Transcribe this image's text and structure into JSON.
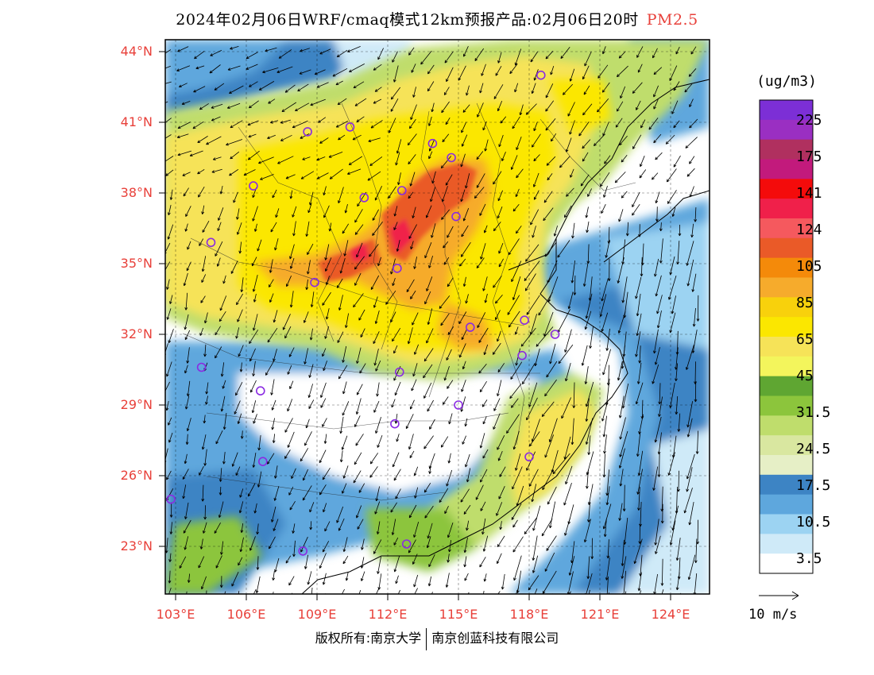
{
  "header": {
    "title": "2024年02月06日WRF/cmaq模式12km预报产品:02月06日20时",
    "variable": "PM2.5"
  },
  "axes": {
    "lat_labels": [
      "44°N",
      "41°N",
      "38°N",
      "35°N",
      "32°N",
      "29°N",
      "26°N",
      "23°N"
    ],
    "lon_labels": [
      "103°E",
      "106°E",
      "109°E",
      "112°E",
      "115°E",
      "118°E",
      "121°E",
      "124°E"
    ]
  },
  "colorbar": {
    "unit": "(ug/m3)",
    "labels": [
      "225",
      "175",
      "141",
      "124",
      "105",
      "85",
      "65",
      "45",
      "31.5",
      "24.5",
      "17.5",
      "10.5",
      "3.5"
    ],
    "colors": [
      "#7c2fd6",
      "#9a2fc2",
      "#b0305f",
      "#c21a7c",
      "#f40b0b",
      "#f0204a",
      "#f5595e",
      "#ea5a28",
      "#f48a0a",
      "#f6ab2c",
      "#f8d10c",
      "#fbe700",
      "#f6e358",
      "#f3f55c",
      "#5fa632",
      "#8cc53c",
      "#bfdd6c",
      "#d9e7a0",
      "#e6efc6",
      "#3d84c4",
      "#5ea7dd",
      "#9cd3f2",
      "#cfeaf8",
      "#ffffff"
    ]
  },
  "wind_reference": {
    "label": "10 m/s"
  },
  "footer": {
    "copyright_left": "版权所有:南京大学",
    "copyright_right": "南京创蓝科技有限公司"
  },
  "stations": [
    [
      43.0,
      118.5
    ],
    [
      40.8,
      110.4
    ],
    [
      40.6,
      108.6
    ],
    [
      40.1,
      113.9
    ],
    [
      39.5,
      114.7
    ],
    [
      38.3,
      106.3
    ],
    [
      38.1,
      112.6
    ],
    [
      37.8,
      111.0
    ],
    [
      37.0,
      114.9
    ],
    [
      35.9,
      104.5
    ],
    [
      34.8,
      112.4
    ],
    [
      34.2,
      108.9
    ],
    [
      32.6,
      117.8
    ],
    [
      32.3,
      115.5
    ],
    [
      32.0,
      119.1
    ],
    [
      31.1,
      117.7
    ],
    [
      30.6,
      104.1
    ],
    [
      30.4,
      112.5
    ],
    [
      29.6,
      106.6
    ],
    [
      29.0,
      115.0
    ],
    [
      28.2,
      112.3
    ],
    [
      26.8,
      118.0
    ],
    [
      26.6,
      106.7
    ],
    [
      25.0,
      102.8
    ],
    [
      23.1,
      112.8
    ],
    [
      22.8,
      108.4
    ]
  ]
}
